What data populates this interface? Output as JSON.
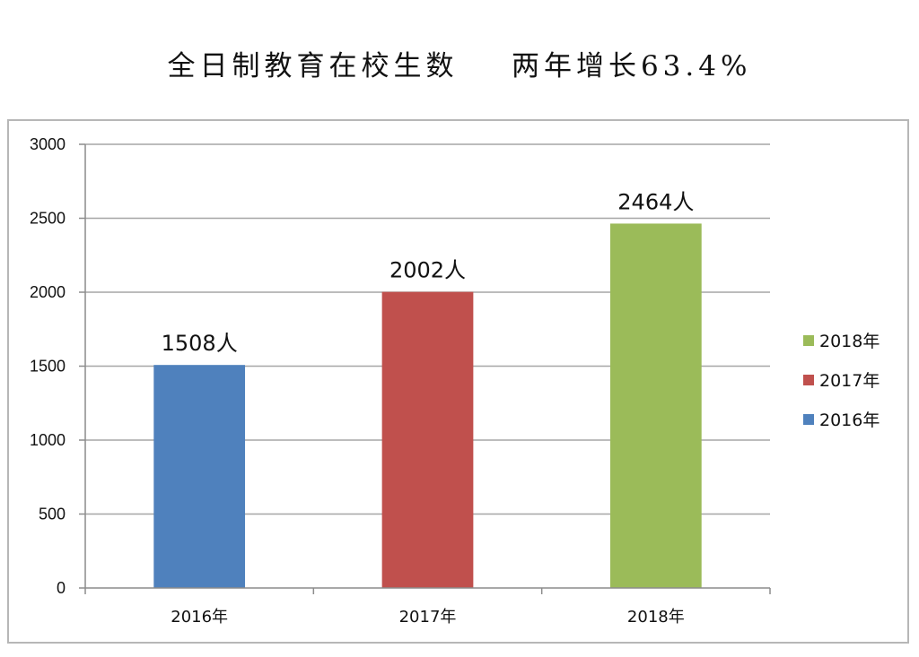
{
  "title": "全日制教育在校生数    两年增长63.4%",
  "chart_data": {
    "type": "bar",
    "categories": [
      "2016年",
      "2017年",
      "2018年"
    ],
    "values": [
      1508,
      2002,
      2464
    ],
    "data_labels": [
      "1508人",
      "2002人",
      "2464人"
    ],
    "colors": [
      "#4f81bd",
      "#c0504d",
      "#9bbb59"
    ],
    "ylim": [
      0,
      3000
    ],
    "yticks": [
      0,
      500,
      1000,
      1500,
      2000,
      2500,
      3000
    ],
    "grid": true,
    "legend": {
      "placement": "right",
      "entries": [
        {
          "label": "2018年",
          "color": "#9bbb59"
        },
        {
          "label": "2017年",
          "color": "#c0504d"
        },
        {
          "label": "2016年",
          "color": "#4f81bd"
        }
      ]
    }
  }
}
